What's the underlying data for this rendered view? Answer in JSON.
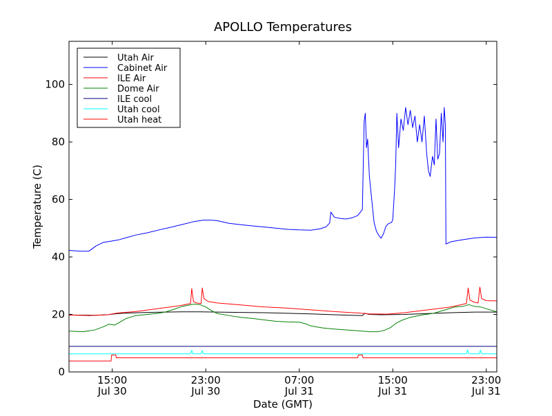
{
  "chart_data": {
    "type": "line",
    "title": "APOLLO Temperatures",
    "xlabel": "Date (GMT)",
    "ylabel": "Temperature (C)",
    "x_unit": "hours",
    "xlim": [
      11.3,
      47.9
    ],
    "ylim": [
      0,
      115
    ],
    "yticks": [
      0,
      20,
      40,
      60,
      80,
      100
    ],
    "xticks": [
      {
        "x": 15,
        "time": "15:00",
        "date": "Jul 30"
      },
      {
        "x": 23,
        "time": "23:00",
        "date": "Jul 30"
      },
      {
        "x": 31,
        "time": "07:00",
        "date": "Jul 31"
      },
      {
        "x": 39,
        "time": "15:00",
        "date": "Jul 31"
      },
      {
        "x": 47,
        "time": "23:00",
        "date": "Jul 31"
      }
    ],
    "legend_position": "top-left",
    "grid": false,
    "series": [
      {
        "name": "Utah Air",
        "color": "#000000",
        "points": [
          [
            11.3,
            19.8
          ],
          [
            13.5,
            19.7
          ],
          [
            14.6,
            19.9
          ],
          [
            15.5,
            20.3
          ],
          [
            16.5,
            20.5
          ],
          [
            18.0,
            20.7
          ],
          [
            19.5,
            20.8
          ],
          [
            21.0,
            20.9
          ],
          [
            22.5,
            20.9
          ],
          [
            24.0,
            20.8
          ],
          [
            26.0,
            20.7
          ],
          [
            28.0,
            20.6
          ],
          [
            30.0,
            20.4
          ],
          [
            32.0,
            20.2
          ],
          [
            34.0,
            19.9
          ],
          [
            35.5,
            19.7
          ],
          [
            36.4,
            19.6
          ],
          [
            36.6,
            20.4
          ],
          [
            37.0,
            20.0
          ],
          [
            38.0,
            19.9
          ],
          [
            40.0,
            20.0
          ],
          [
            42.0,
            20.3
          ],
          [
            44.0,
            20.6
          ],
          [
            46.0,
            20.8
          ],
          [
            47.9,
            20.8
          ]
        ]
      },
      {
        "name": "Cabinet Air",
        "color": "#0000ff",
        "points": [
          [
            11.3,
            42.3
          ],
          [
            12.3,
            42.0
          ],
          [
            13.0,
            42.0
          ],
          [
            13.6,
            43.8
          ],
          [
            14.2,
            45.0
          ],
          [
            14.9,
            45.5
          ],
          [
            15.5,
            45.9
          ],
          [
            16.3,
            46.8
          ],
          [
            17.0,
            47.6
          ],
          [
            18.0,
            48.4
          ],
          [
            19.0,
            49.4
          ],
          [
            20.0,
            50.3
          ],
          [
            21.0,
            51.3
          ],
          [
            22.0,
            52.3
          ],
          [
            22.8,
            52.8
          ],
          [
            23.5,
            52.8
          ],
          [
            24.0,
            52.6
          ],
          [
            25.0,
            51.7
          ],
          [
            26.0,
            51.2
          ],
          [
            27.0,
            50.8
          ],
          [
            28.0,
            50.4
          ],
          [
            29.0,
            50.0
          ],
          [
            30.0,
            49.6
          ],
          [
            31.0,
            49.4
          ],
          [
            32.0,
            49.3
          ],
          [
            32.8,
            49.8
          ],
          [
            33.3,
            50.5
          ],
          [
            33.6,
            51.8
          ],
          [
            33.7,
            55.6
          ],
          [
            34.0,
            53.8
          ],
          [
            34.5,
            53.4
          ],
          [
            35.0,
            53.2
          ],
          [
            35.5,
            53.6
          ],
          [
            36.0,
            54.4
          ],
          [
            36.4,
            56.5
          ],
          [
            36.55,
            87.0
          ],
          [
            36.65,
            90.0
          ],
          [
            36.75,
            78.0
          ],
          [
            36.85,
            81.0
          ],
          [
            37.0,
            68.0
          ],
          [
            37.2,
            60.0
          ],
          [
            37.4,
            52.0
          ],
          [
            37.6,
            49.0
          ],
          [
            37.8,
            47.5
          ],
          [
            38.0,
            46.5
          ],
          [
            38.2,
            48.0
          ],
          [
            38.4,
            50.5
          ],
          [
            38.6,
            51.5
          ],
          [
            38.9,
            52.0
          ],
          [
            39.0,
            53.0
          ],
          [
            39.15,
            63.0
          ],
          [
            39.25,
            72.0
          ],
          [
            39.35,
            90.0
          ],
          [
            39.5,
            78.0
          ],
          [
            39.7,
            88.0
          ],
          [
            39.9,
            84.0
          ],
          [
            40.1,
            92.0
          ],
          [
            40.3,
            86.0
          ],
          [
            40.5,
            91.0
          ],
          [
            40.7,
            85.0
          ],
          [
            40.9,
            89.0
          ],
          [
            41.1,
            80.0
          ],
          [
            41.3,
            86.0
          ],
          [
            41.5,
            80.0
          ],
          [
            41.7,
            89.0
          ],
          [
            41.9,
            76.0
          ],
          [
            42.05,
            70.0
          ],
          [
            42.2,
            68.0
          ],
          [
            42.4,
            75.0
          ],
          [
            42.55,
            72.0
          ],
          [
            42.7,
            88.0
          ],
          [
            42.85,
            74.0
          ],
          [
            43.0,
            76.0
          ],
          [
            43.15,
            90.0
          ],
          [
            43.3,
            80.0
          ],
          [
            43.4,
            92.0
          ],
          [
            43.5,
            86.0
          ],
          [
            43.55,
            44.5
          ],
          [
            44.0,
            45.3
          ],
          [
            45.0,
            46.0
          ],
          [
            46.0,
            46.6
          ],
          [
            47.0,
            46.9
          ],
          [
            47.9,
            46.8
          ]
        ]
      },
      {
        "name": "ILE Air",
        "color": "#ff0000",
        "points": [
          [
            11.3,
            19.8
          ],
          [
            13.0,
            19.6
          ],
          [
            14.6,
            19.9
          ],
          [
            15.5,
            20.5
          ],
          [
            17.0,
            21.0
          ],
          [
            18.5,
            21.8
          ],
          [
            20.0,
            22.6
          ],
          [
            21.0,
            23.2
          ],
          [
            21.7,
            23.8
          ],
          [
            21.8,
            29.0
          ],
          [
            21.95,
            24.5
          ],
          [
            22.2,
            24.0
          ],
          [
            22.6,
            23.8
          ],
          [
            22.7,
            29.2
          ],
          [
            22.85,
            25.5
          ],
          [
            23.2,
            24.5
          ],
          [
            24.0,
            24.0
          ],
          [
            26.0,
            23.3
          ],
          [
            28.0,
            22.6
          ],
          [
            30.0,
            22.2
          ],
          [
            32.0,
            21.6
          ],
          [
            34.0,
            21.0
          ],
          [
            36.0,
            20.5
          ],
          [
            37.0,
            20.2
          ],
          [
            38.5,
            20.1
          ],
          [
            40.0,
            20.6
          ],
          [
            42.0,
            21.6
          ],
          [
            44.0,
            22.6
          ],
          [
            45.3,
            23.8
          ],
          [
            45.45,
            29.2
          ],
          [
            45.6,
            25.0
          ],
          [
            46.0,
            24.2
          ],
          [
            46.3,
            24.0
          ],
          [
            46.45,
            29.5
          ],
          [
            46.6,
            25.5
          ],
          [
            47.0,
            24.8
          ],
          [
            47.9,
            24.7
          ]
        ]
      },
      {
        "name": "Dome Air",
        "color": "#008000",
        "points": [
          [
            11.3,
            14.2
          ],
          [
            12.5,
            14.0
          ],
          [
            13.5,
            14.6
          ],
          [
            14.3,
            15.8
          ],
          [
            14.7,
            16.6
          ],
          [
            15.2,
            16.3
          ],
          [
            15.6,
            17.2
          ],
          [
            16.2,
            18.6
          ],
          [
            17.0,
            19.6
          ],
          [
            18.0,
            20.0
          ],
          [
            18.8,
            20.3
          ],
          [
            19.5,
            20.8
          ],
          [
            20.3,
            21.8
          ],
          [
            21.0,
            22.8
          ],
          [
            21.5,
            23.2
          ],
          [
            22.0,
            23.6
          ],
          [
            22.5,
            23.4
          ],
          [
            23.0,
            22.6
          ],
          [
            23.5,
            21.3
          ],
          [
            24.0,
            20.3
          ],
          [
            25.0,
            19.6
          ],
          [
            26.0,
            19.0
          ],
          [
            27.0,
            18.6
          ],
          [
            28.0,
            18.1
          ],
          [
            29.0,
            17.6
          ],
          [
            30.0,
            17.4
          ],
          [
            31.0,
            17.3
          ],
          [
            31.5,
            16.8
          ],
          [
            32.0,
            16.0
          ],
          [
            33.0,
            15.3
          ],
          [
            34.0,
            14.9
          ],
          [
            35.0,
            14.6
          ],
          [
            36.0,
            14.3
          ],
          [
            37.0,
            14.0
          ],
          [
            37.8,
            14.0
          ],
          [
            38.3,
            14.5
          ],
          [
            38.8,
            15.4
          ],
          [
            39.3,
            17.0
          ],
          [
            39.8,
            18.0
          ],
          [
            40.5,
            19.0
          ],
          [
            41.5,
            19.8
          ],
          [
            42.5,
            20.4
          ],
          [
            43.5,
            21.6
          ],
          [
            44.3,
            22.6
          ],
          [
            45.0,
            22.8
          ],
          [
            45.5,
            23.4
          ],
          [
            46.0,
            22.8
          ],
          [
            46.5,
            22.6
          ],
          [
            47.0,
            22.0
          ],
          [
            47.9,
            20.9
          ]
        ]
      },
      {
        "name": "ILE cool",
        "color": "#00007f",
        "points": [
          [
            11.3,
            8.9
          ],
          [
            47.9,
            8.9
          ]
        ]
      },
      {
        "name": "Utah cool",
        "color": "#00ffff",
        "points": [
          [
            11.3,
            6.3
          ],
          [
            21.7,
            6.3
          ],
          [
            21.8,
            7.5
          ],
          [
            21.9,
            6.3
          ],
          [
            22.6,
            6.3
          ],
          [
            22.7,
            7.4
          ],
          [
            22.8,
            6.3
          ],
          [
            45.3,
            6.3
          ],
          [
            45.4,
            7.7
          ],
          [
            45.5,
            6.3
          ],
          [
            46.4,
            6.3
          ],
          [
            46.5,
            7.6
          ],
          [
            46.6,
            6.3
          ],
          [
            47.9,
            6.3
          ]
        ]
      },
      {
        "name": "Utah heat",
        "color": "#ff0000",
        "points": [
          [
            11.3,
            3.8
          ],
          [
            14.9,
            3.8
          ],
          [
            14.95,
            5.9
          ],
          [
            15.3,
            5.9
          ],
          [
            15.35,
            4.9
          ],
          [
            36.0,
            4.9
          ],
          [
            36.05,
            5.9
          ],
          [
            36.4,
            5.9
          ],
          [
            36.45,
            4.9
          ],
          [
            47.9,
            4.9
          ]
        ]
      }
    ]
  }
}
